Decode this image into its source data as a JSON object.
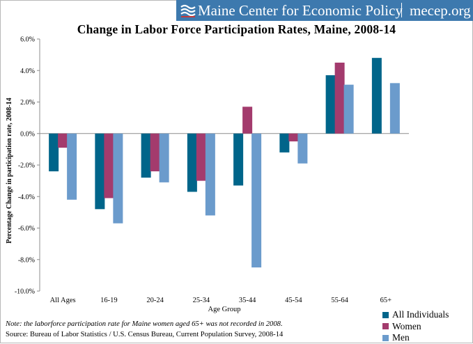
{
  "header": {
    "brand_name": "Maine Center for Economic Policy",
    "brand_url": "mecep.org",
    "bar_color": "#3d79ae"
  },
  "chart_data": {
    "type": "bar",
    "title": "Change in Labor Force Participation Rates, Maine, 2008-14",
    "xlabel": "Age Group",
    "ylabel": "Percentage Change in participation rate, 2008-14",
    "categories": [
      "All Ages",
      "16-19",
      "20-24",
      "25-34",
      "35-44",
      "45-54",
      "55-64",
      "65+"
    ],
    "series": [
      {
        "name": "All Individuals",
        "color": "#00658a",
        "values": [
          -2.4,
          -4.8,
          -2.8,
          -3.7,
          -3.3,
          -1.2,
          3.7,
          4.8
        ]
      },
      {
        "name": "Women",
        "color": "#a33b6d",
        "values": [
          -0.9,
          -4.1,
          -2.4,
          -3.0,
          1.7,
          -0.5,
          4.5,
          null
        ]
      },
      {
        "name": "Men",
        "color": "#6b9bcc",
        "values": [
          -4.2,
          -5.7,
          -3.1,
          -5.2,
          -8.5,
          -1.9,
          3.1,
          3.2
        ]
      }
    ],
    "ylim": [
      -10,
      6
    ],
    "yticks": [
      "6.0%",
      "4.0%",
      "2.0%",
      "0.0%",
      "-2.0%",
      "-4.0%",
      "-6.0%",
      "-8.0%",
      "-10.0%"
    ],
    "ytick_values": [
      6,
      4,
      2,
      0,
      -2,
      -4,
      -6,
      -8,
      -10
    ],
    "grid": false,
    "legend_position": "bottom-right"
  },
  "footer": {
    "note": "Note: the laborforce participation rate for Maine women aged 65+ was not recorded in 2008.",
    "source": "Source: Bureau of Labor Statistics / U.S. Census Bureau, Current Population Survey, 2008-14"
  }
}
